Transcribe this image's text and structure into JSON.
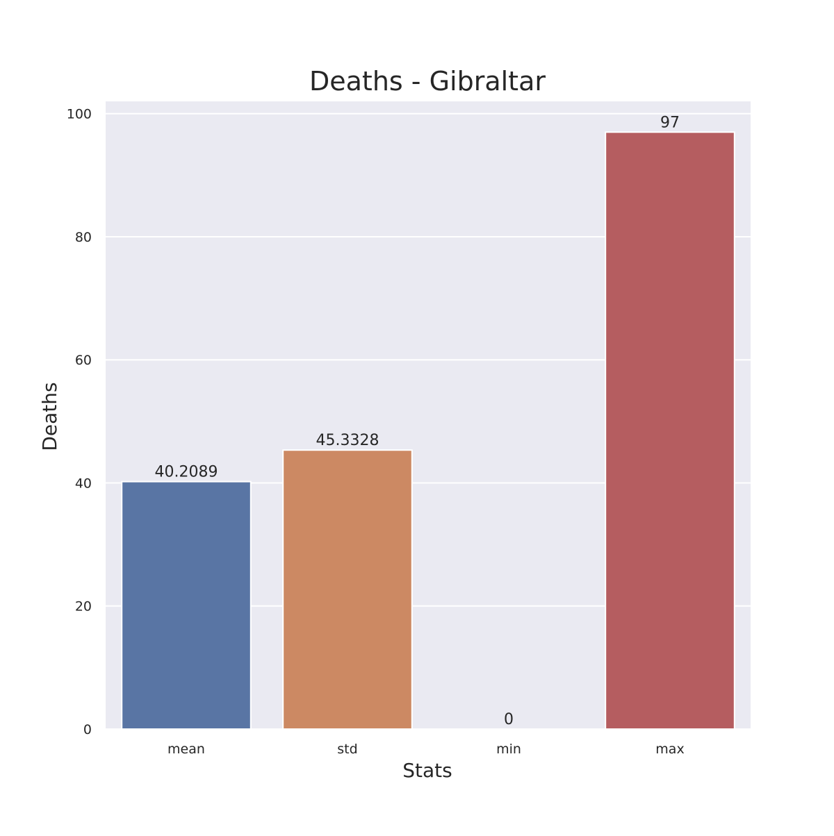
{
  "chart_data": {
    "type": "bar",
    "title": "Deaths - Gibraltar",
    "xlabel": "Stats",
    "ylabel": "Deaths",
    "categories": [
      "mean",
      "std",
      "min",
      "max"
    ],
    "values": [
      40.2089,
      45.3328,
      0,
      97
    ],
    "value_labels": [
      "40.2089",
      "45.3328",
      "0",
      "97"
    ],
    "colors": [
      "#5975a4",
      "#cc8963",
      "#5f9e6e",
      "#b55d60"
    ],
    "ylim": [
      0,
      102
    ],
    "yticks": [
      0,
      20,
      40,
      60,
      80,
      100
    ],
    "grid": true,
    "background": "#eaeaf2",
    "legend": "none"
  }
}
